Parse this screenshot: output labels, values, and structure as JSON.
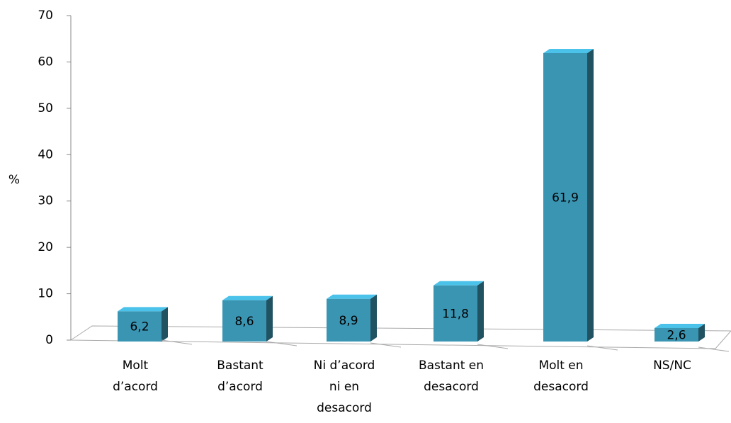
{
  "chart_data": {
    "type": "bar3d",
    "y_label": "%",
    "categories": [
      [
        "Molt",
        "d’acord"
      ],
      [
        "Bastant",
        "d’acord"
      ],
      [
        "Ni d’acord",
        "ni en",
        "desacord"
      ],
      [
        "Bastant en",
        "desacord"
      ],
      [
        "Molt en",
        "desacord"
      ],
      [
        "NS/NC"
      ]
    ],
    "values": [
      6.2,
      8.6,
      8.9,
      11.8,
      61.9,
      2.6
    ],
    "value_labels": [
      "6,2",
      "8,6",
      "8,9",
      "11,8",
      "61,9",
      "2,6"
    ],
    "color": "#3a95b3",
    "ylim": [
      0,
      70
    ],
    "yticks": [
      0,
      10,
      20,
      30,
      40,
      50,
      60,
      70
    ]
  }
}
